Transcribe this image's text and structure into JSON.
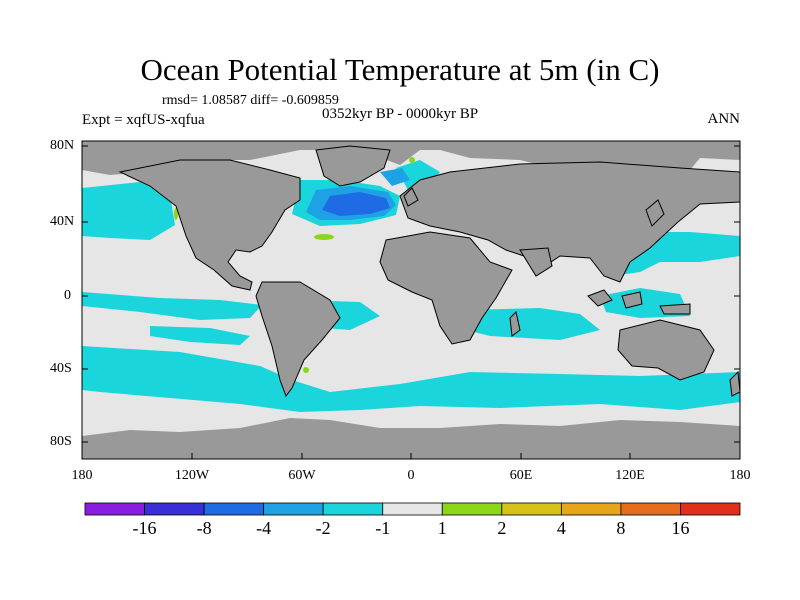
{
  "title": "Ocean Potential Temperature at 5m (in C)",
  "stats": "rmsd= 1.08587 diff= -0.609859",
  "experiment": "Expt = xqfUS-xqfua",
  "period": "0352kyr BP - 0000kyr BP",
  "season": "ANN",
  "y_axis_labels": [
    "80N",
    "40N",
    "0",
    "40S",
    "80S"
  ],
  "x_axis_labels": [
    "180",
    "120W",
    "60W",
    "0",
    "60E",
    "120E",
    "180"
  ],
  "colorbar": {
    "labels": [
      "-16",
      "-8",
      "-4",
      "-2",
      "-1",
      "1",
      "2",
      "4",
      "8",
      "16"
    ],
    "colors": [
      "#8a1ee0",
      "#3a2ed8",
      "#1f6be6",
      "#1da2e6",
      "#1ad6dc",
      "#e6e6e6",
      "#8cd61a",
      "#d6c31a",
      "#e6a61a",
      "#e66b1a",
      "#e0301a"
    ]
  },
  "colors": {
    "land": "#999999",
    "neutral_ocean": "#e6e6e6",
    "minus1_to_minus2": "#1ad6dc",
    "minus2_to_minus4": "#1da2e6",
    "minus4_to_minus8": "#1f6be6",
    "plus1_to_plus2": "#8cd61a"
  }
}
